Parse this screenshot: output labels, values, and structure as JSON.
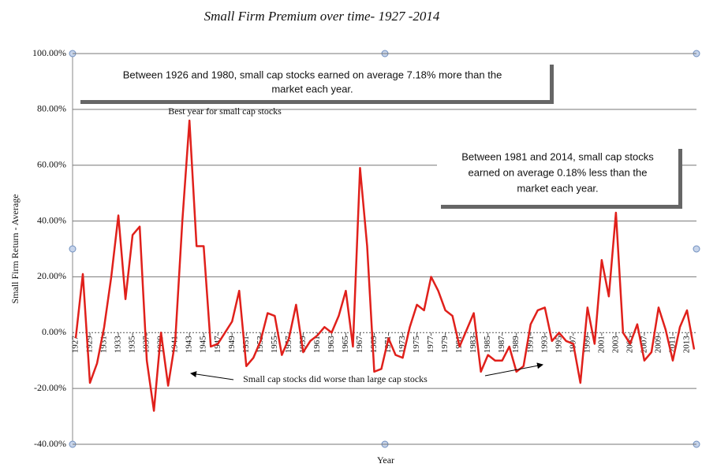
{
  "chart_data": {
    "type": "line",
    "title": "Small Firm Premium over time- 1927 -2014",
    "x_label": "Year",
    "y_label": "Small Firm Return - Average",
    "x": [
      1927,
      1928,
      1929,
      1930,
      1931,
      1932,
      1933,
      1934,
      1935,
      1936,
      1937,
      1938,
      1939,
      1940,
      1941,
      1942,
      1943,
      1944,
      1945,
      1946,
      1947,
      1948,
      1949,
      1950,
      1951,
      1952,
      1953,
      1954,
      1955,
      1956,
      1957,
      1958,
      1959,
      1960,
      1961,
      1962,
      1963,
      1964,
      1965,
      1966,
      1967,
      1968,
      1969,
      1970,
      1971,
      1972,
      1973,
      1974,
      1975,
      1976,
      1977,
      1978,
      1979,
      1980,
      1981,
      1982,
      1983,
      1984,
      1985,
      1986,
      1987,
      1988,
      1989,
      1990,
      1991,
      1992,
      1993,
      1994,
      1995,
      1996,
      1997,
      1998,
      1999,
      2000,
      2001,
      2002,
      2003,
      2004,
      2005,
      2006,
      2007,
      2008,
      2009,
      2010,
      2011,
      2012,
      2013,
      2014
    ],
    "series": [
      {
        "name": "Small Firm Premium",
        "color": "#e0201b",
        "values": [
          -2,
          21,
          -18,
          -11,
          2,
          20,
          42,
          12,
          35,
          38,
          -10,
          -28,
          0,
          -19,
          -3,
          40,
          76,
          31,
          31,
          -5,
          -4,
          0,
          4,
          15,
          -12,
          -9,
          -3,
          7,
          6,
          -8,
          -2,
          10,
          -7,
          -3,
          -1,
          2,
          0,
          6,
          15,
          -5,
          59,
          31,
          -14,
          -13,
          -2,
          -8,
          -9,
          2,
          10,
          8,
          20,
          15,
          8,
          6,
          -5,
          1,
          7,
          -14,
          -8,
          -10,
          -10,
          -5,
          -14,
          -12,
          3,
          8,
          9,
          -3,
          0,
          -3,
          -4,
          -18,
          9,
          -4,
          26,
          13,
          43,
          0,
          -4,
          3,
          -10,
          -7,
          9,
          1,
          -10,
          2,
          8,
          -6
        ]
      }
    ],
    "xlim": [
      1926.5,
      2014.5
    ],
    "xticks": [
      1927,
      1929,
      1931,
      1933,
      1935,
      1937,
      1939,
      1941,
      1943,
      1945,
      1947,
      1949,
      1951,
      1953,
      1955,
      1957,
      1959,
      1961,
      1963,
      1965,
      1967,
      1969,
      1971,
      1973,
      1975,
      1977,
      1979,
      1981,
      1983,
      1985,
      1987,
      1989,
      1991,
      1993,
      1995,
      1997,
      1999,
      2001,
      2003,
      2005,
      2007,
      2009,
      2011,
      2013
    ],
    "ylim": [
      -40,
      100
    ],
    "yticks": [
      {
        "value": -40,
        "label": "-40.00%"
      },
      {
        "value": -20,
        "label": "-20.00%"
      },
      {
        "value": 0,
        "label": "0.00%"
      },
      {
        "value": 20,
        "label": "20.00%"
      },
      {
        "value": 40,
        "label": "40.00%"
      },
      {
        "value": 60,
        "label": "60.00%"
      },
      {
        "value": 80,
        "label": "80.00%"
      },
      {
        "value": 100,
        "label": "100.00%"
      }
    ],
    "grid": true,
    "annotations": {
      "box1": [
        "Between 1926 and 1980, small cap stocks earned on average 7.18% more than the",
        "market each year."
      ],
      "box2": [
        "Between 1981 and 2014, small cap stocks",
        "earned on average 0.18% less than the",
        "market each year."
      ],
      "best": "Best year for small cap stocks",
      "worse": "Small cap stocks did worse than large cap stocks"
    }
  }
}
